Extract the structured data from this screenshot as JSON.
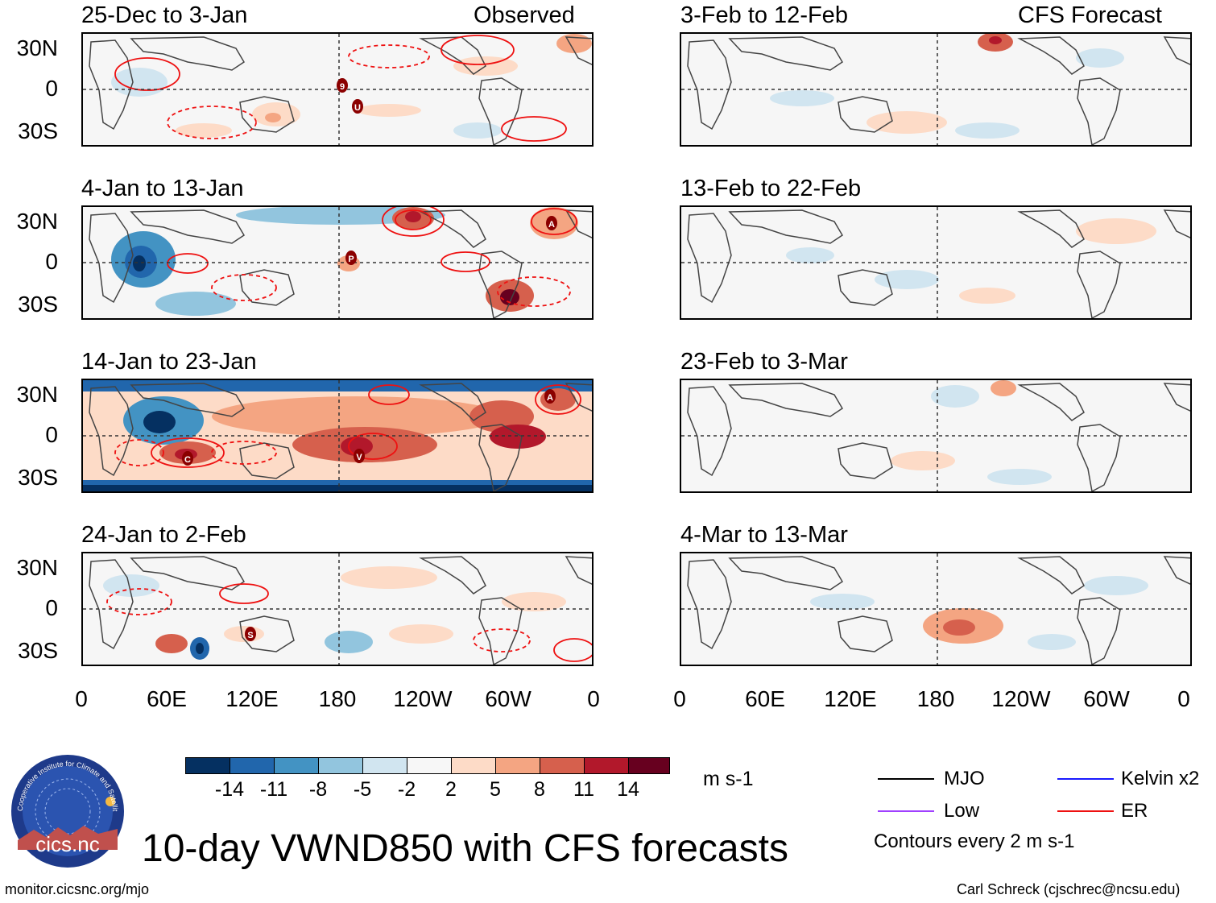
{
  "title": "10-day VWND850 with CFS forecasts",
  "footer_left": "monitor.cicsnc.org/mjo",
  "footer_right": "Carl Schreck (cjschrec@ncsu.edu)",
  "logo": {
    "ring_text": "Cooperative Institute for Climate and Satellites",
    "name": "cics.nc"
  },
  "columns": {
    "observed_label": "Observed",
    "forecast_label": "CFS Forecast"
  },
  "panels_observed": [
    {
      "period": "25-Dec to 3-Jan",
      "markers": [
        "9",
        "U"
      ]
    },
    {
      "period": "4-Jan to 13-Jan",
      "markers": [
        "A",
        "P"
      ]
    },
    {
      "period": "14-Jan to 23-Jan",
      "markers": [
        "A",
        "C",
        "V"
      ]
    },
    {
      "period": "24-Jan to 2-Feb",
      "markers": [
        "S"
      ]
    }
  ],
  "panels_forecast": [
    {
      "period": "3-Feb to 12-Feb"
    },
    {
      "period": "13-Feb to 22-Feb"
    },
    {
      "period": "23-Feb to 3-Mar"
    },
    {
      "period": "4-Mar to 13-Mar"
    }
  ],
  "y_ticks": [
    "30N",
    "0",
    "30S"
  ],
  "x_ticks": [
    "0",
    "60E",
    "120E",
    "180",
    "120W",
    "60W",
    "0"
  ],
  "colorbar": {
    "unit": "m s-1",
    "colors": [
      "#053061",
      "#2166ac",
      "#4393c3",
      "#92c5de",
      "#d1e5f0",
      "#f7f7f7",
      "#fddbc7",
      "#f4a582",
      "#d6604d",
      "#b2182b",
      "#67001f"
    ],
    "labels": [
      "-14",
      "-11",
      "-8",
      "-5",
      "-2",
      "2",
      "5",
      "8",
      "11",
      "14"
    ]
  },
  "legend": {
    "items": [
      {
        "label": "MJO",
        "color": "#000000"
      },
      {
        "label": "Kelvin x2",
        "color": "#1a1aff"
      },
      {
        "label": "Low",
        "color": "#a040ff"
      },
      {
        "label": "ER",
        "color": "#ee1111"
      }
    ],
    "note": "Contours every 2 m s-1"
  }
}
